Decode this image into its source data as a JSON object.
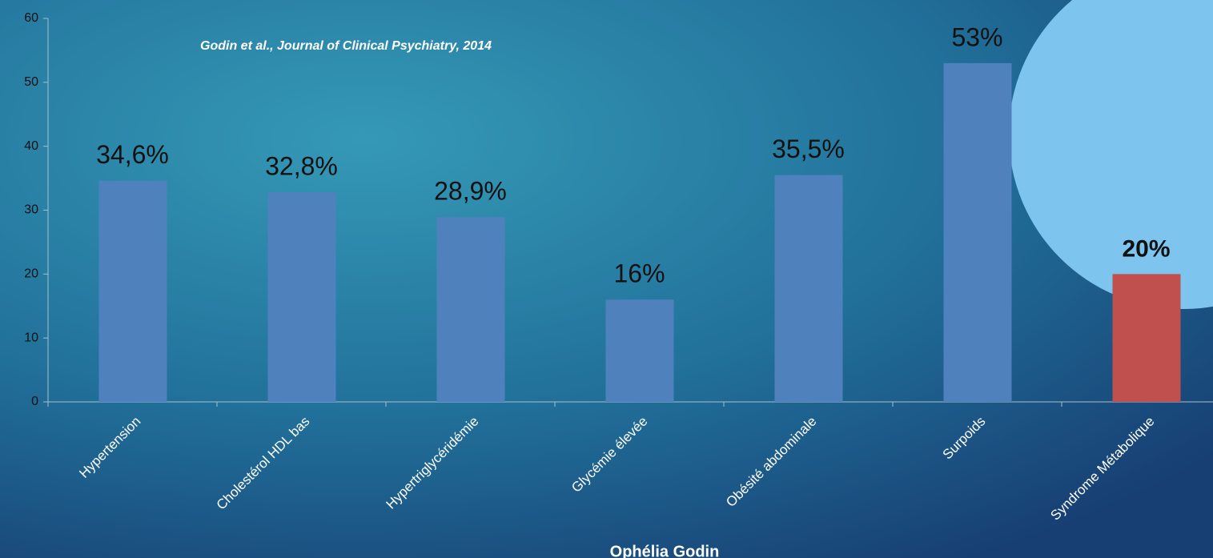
{
  "chart_data": {
    "type": "bar",
    "subtitle": "Godin et al., Journal of Clinical Psychiatry, 2014",
    "author": "Ophélia Godin",
    "categories": [
      "Hypertension",
      "Cholestérol HDL bas",
      "Hypertriglycéridémie",
      "Glycémie élevée",
      "Obésité abdominale",
      "Surpoids",
      "Syndrome Métabolique"
    ],
    "values": [
      34.6,
      32.8,
      28.9,
      16,
      35.5,
      53,
      20
    ],
    "value_labels": [
      "34,6%",
      "32,8%",
      "28,9%",
      "16%",
      "35,5%",
      "53%",
      "20%"
    ],
    "colors": [
      "#4f81bd",
      "#4f81bd",
      "#4f81bd",
      "#4f81bd",
      "#4f81bd",
      "#4f81bd",
      "#c0504d"
    ],
    "ylim": [
      0,
      60
    ],
    "yticks": [
      0,
      10,
      20,
      30,
      40,
      50,
      60
    ],
    "grid": false
  }
}
